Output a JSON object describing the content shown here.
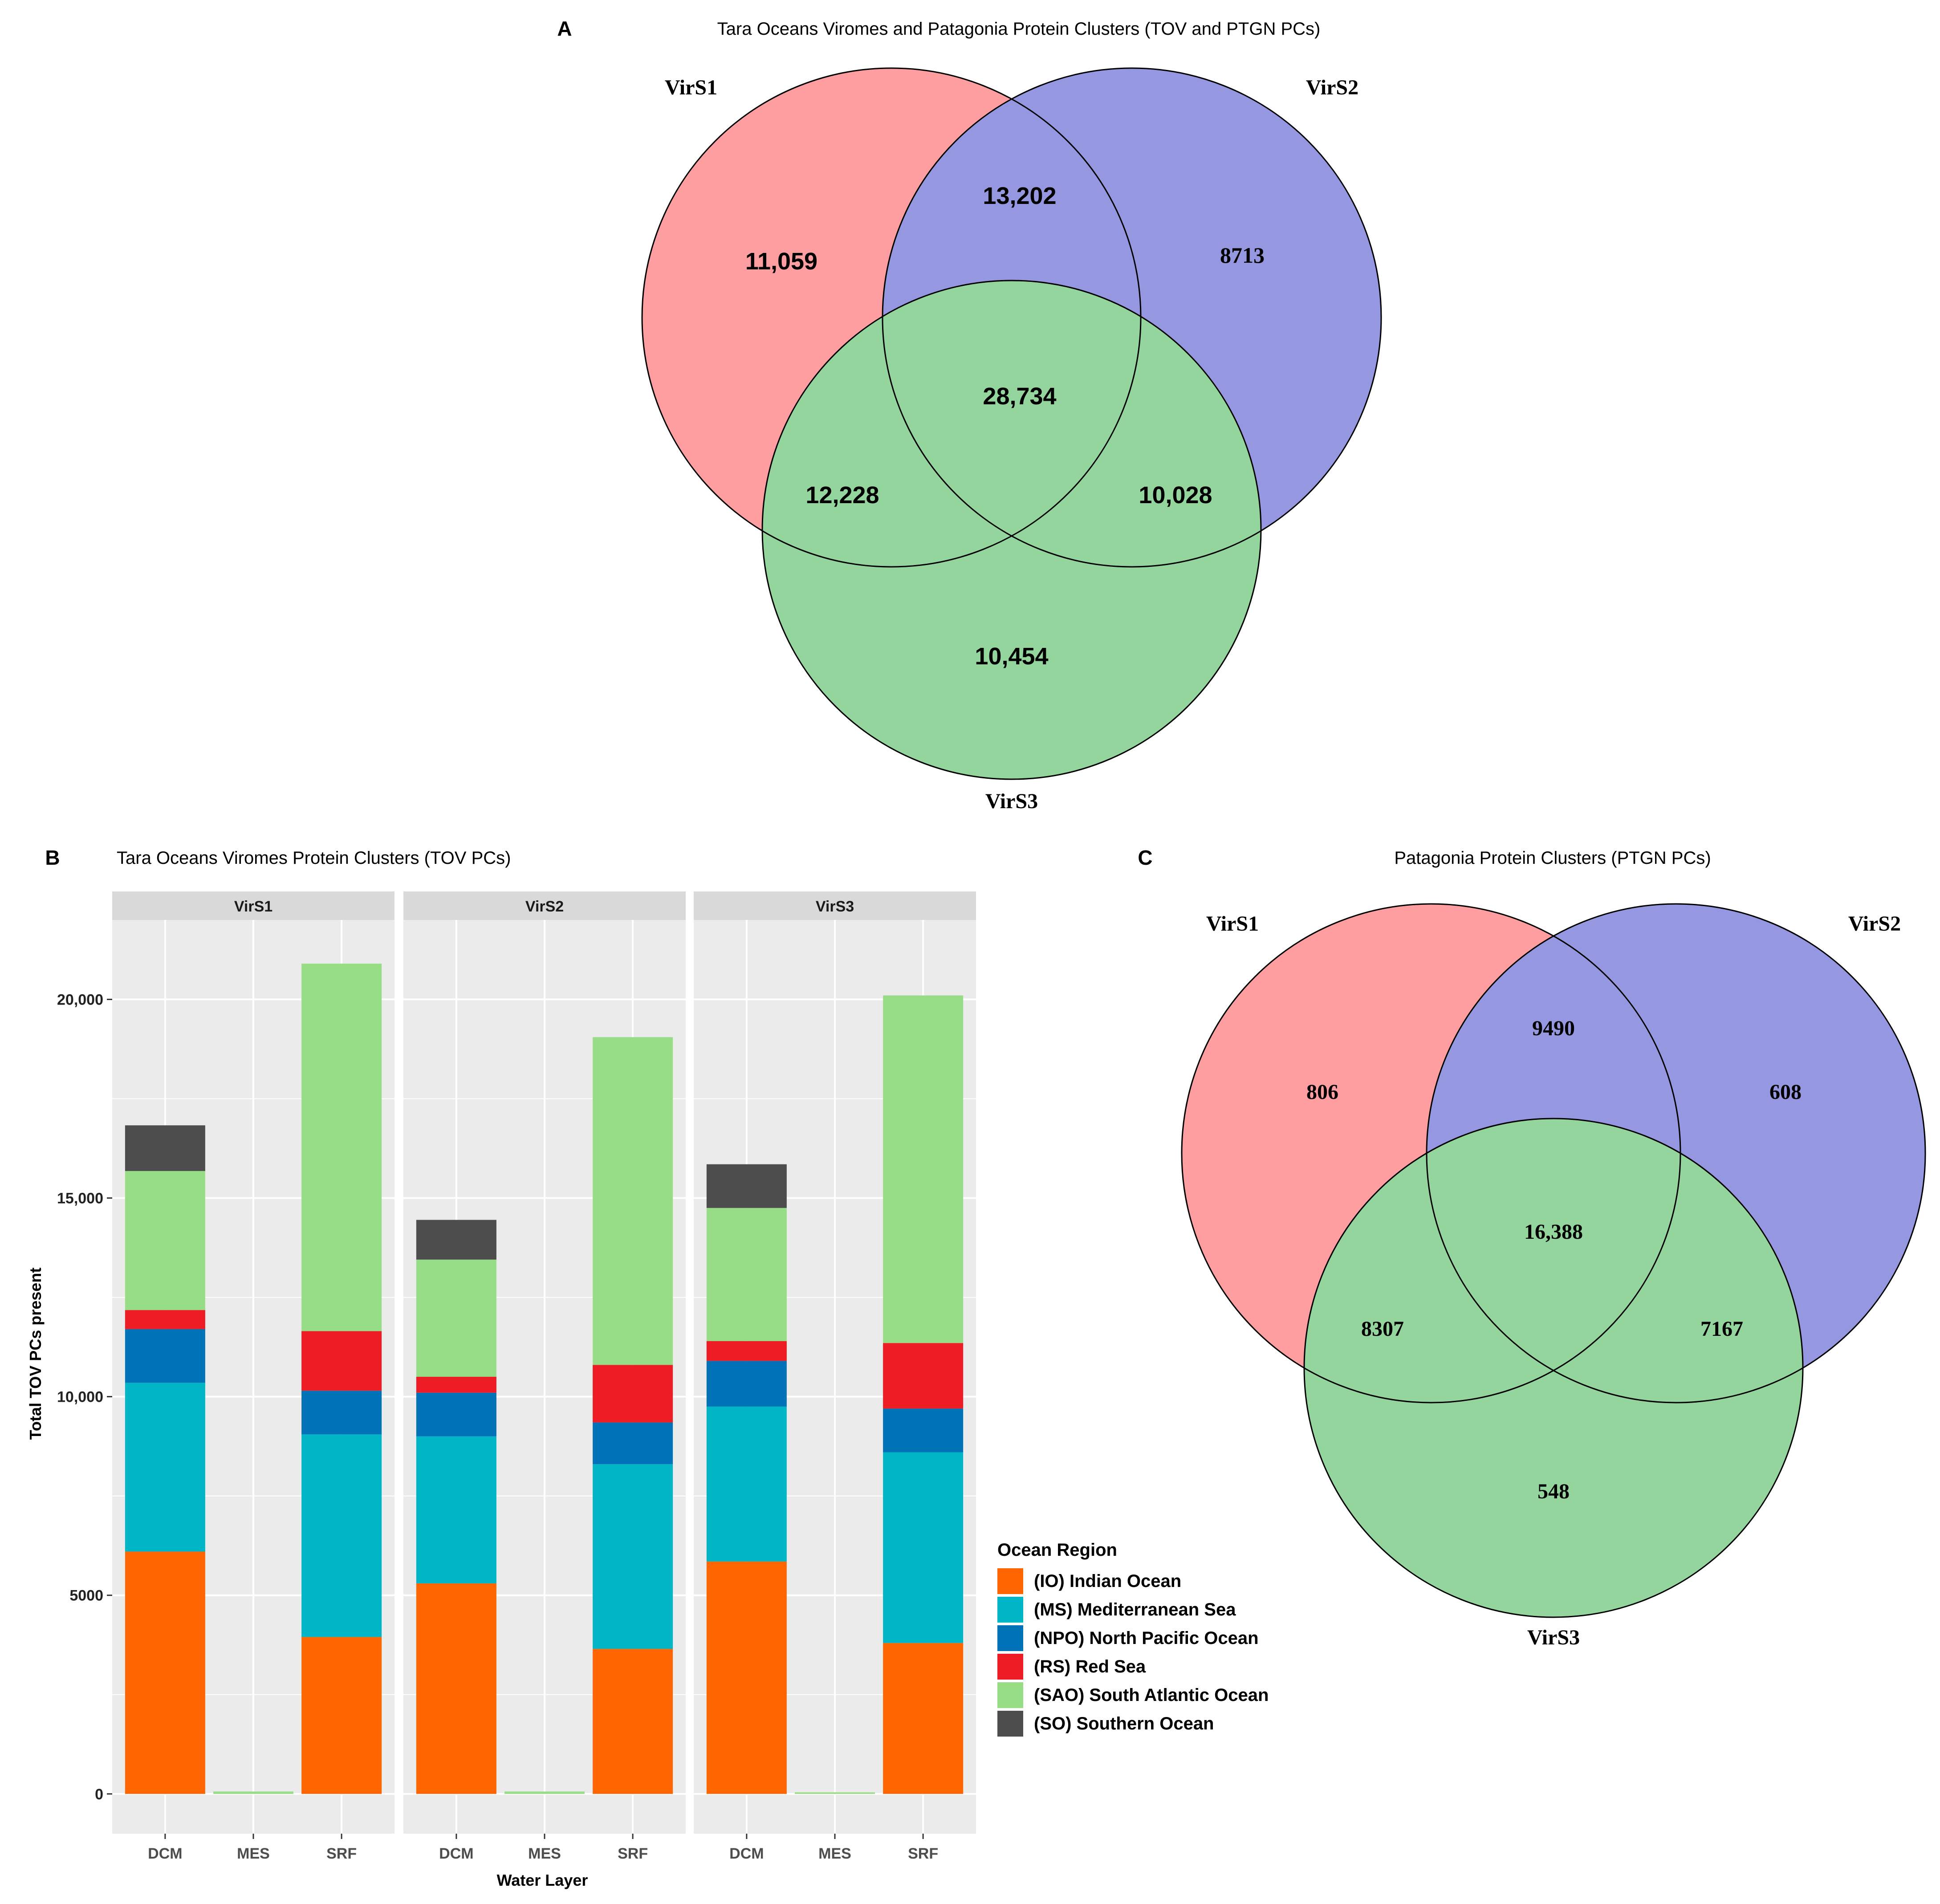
{
  "colors": {
    "venn_a": "#ff9ea0",
    "venn_b": "#9598e0",
    "venn_c": "#93d59d",
    "panel_bg": "#ebebeb",
    "strip_bg": "#d9d9d9",
    "grid": "#ffffff"
  },
  "panel_a": {
    "letter": "A",
    "title": "Tara Oceans Viromes and Patagonia Protein Clusters (TOV and PTGN PCs)",
    "sets": [
      "VirS1",
      "VirS2",
      "VirS3"
    ],
    "counts": {
      "s1_only": "11,059",
      "s2_only": "8713",
      "s3_only": "10,454",
      "s1_s2": "13,202",
      "s1_s3": "12,228",
      "s2_s3": "10,028",
      "all": "28,734"
    }
  },
  "panel_c": {
    "letter": "C",
    "title": "Patagonia Protein Clusters (PTGN PCs)",
    "sets": [
      "VirS1",
      "VirS2",
      "VirS3"
    ],
    "counts": {
      "s1_only": "806",
      "s2_only": "608",
      "s3_only": "548",
      "s1_s2": "9490",
      "s1_s3": "8307",
      "s2_s3": "7167",
      "all": "16,388"
    }
  },
  "panel_b": {
    "letter": "B",
    "title": "Tara Oceans Viromes Protein Clusters (TOV PCs)",
    "xlabel": "Water Layer",
    "ylabel": "Total TOV PCs present",
    "legend_title": "Ocean Region"
  },
  "chart_data": [
    {
      "type": "venn",
      "title": "Tara Oceans Viromes and Patagonia Protein Clusters (TOV and PTGN PCs)",
      "sets": [
        "VirS1",
        "VirS2",
        "VirS3"
      ],
      "regions": {
        "VirS1 only": 11059,
        "VirS2 only": 8713,
        "VirS3 only": 10454,
        "VirS1&VirS2": 13202,
        "VirS1&VirS3": 12228,
        "VirS2&VirS3": 10028,
        "all": 28734
      }
    },
    {
      "type": "bar",
      "stacked": true,
      "title": "Tara Oceans Viromes Protein Clusters (TOV PCs)",
      "xlabel": "Water Layer",
      "ylabel": "Total TOV PCs present",
      "ylim": [
        -1000,
        22000
      ],
      "yticks": [
        0,
        5000,
        10000,
        15000,
        20000
      ],
      "ytick_labels": [
        "0",
        "5000",
        "10,000",
        "15,000",
        "20,000"
      ],
      "facets": [
        "VirS1",
        "VirS2",
        "VirS3"
      ],
      "categories": [
        "DCM",
        "MES",
        "SRF"
      ],
      "series": [
        {
          "name": "(IO) Indian Ocean",
          "color": "#ff6600",
          "values": [
            [
              6100,
              0,
              3950
            ],
            [
              5300,
              0,
              3650
            ],
            [
              5850,
              0,
              3800
            ]
          ]
        },
        {
          "name": "(MS) Mediterranean Sea",
          "color": "#00b5c6",
          "values": [
            [
              4250,
              0,
              5100
            ],
            [
              3700,
              0,
              4650
            ],
            [
              3900,
              0,
              4800
            ]
          ]
        },
        {
          "name": "(NPO) North Pacific Ocean",
          "color": "#0072b7",
          "values": [
            [
              1350,
              0,
              1100
            ],
            [
              1100,
              0,
              1050
            ],
            [
              1150,
              0,
              1100
            ]
          ]
        },
        {
          "name": "(RS) Red Sea",
          "color": "#ee1c25",
          "values": [
            [
              480,
              0,
              1500
            ],
            [
              400,
              0,
              1450
            ],
            [
              500,
              0,
              1650
            ]
          ]
        },
        {
          "name": "(SAO) South Atlantic Ocean",
          "color": "#96dd86",
          "values": [
            [
              3500,
              60,
              9250
            ],
            [
              2950,
              60,
              8250
            ],
            [
              3350,
              40,
              8750
            ]
          ]
        },
        {
          "name": "(SO) Southern Ocean",
          "color": "#4d4d4d",
          "values": [
            [
              1150,
              0,
              0
            ],
            [
              1000,
              0,
              0
            ],
            [
              1100,
              0,
              0
            ]
          ]
        }
      ]
    },
    {
      "type": "venn",
      "title": "Patagonia Protein Clusters (PTGN PCs)",
      "sets": [
        "VirS1",
        "VirS2",
        "VirS3"
      ],
      "regions": {
        "VirS1 only": 806,
        "VirS2 only": 608,
        "VirS3 only": 548,
        "VirS1&VirS2": 9490,
        "VirS1&VirS3": 8307,
        "VirS2&VirS3": 7167,
        "all": 16388
      }
    }
  ]
}
